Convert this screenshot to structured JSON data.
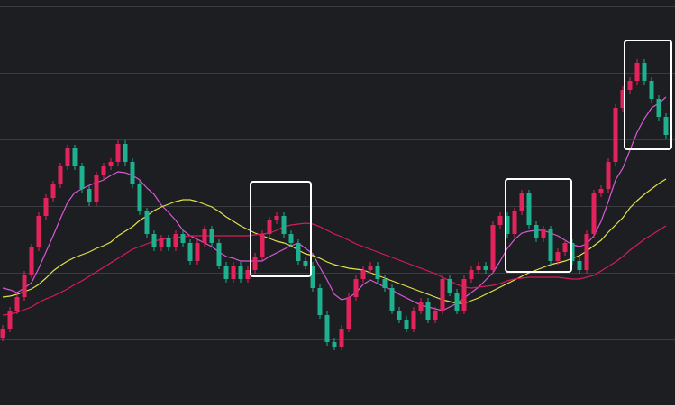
{
  "chart_data": {
    "type": "candlestick",
    "ylim": [
      1,
      451
    ],
    "yticks": [
      74,
      148,
      222,
      296,
      370,
      444
    ],
    "grid": true,
    "up_color": "#e3245c",
    "down_color": "#1fb08f",
    "open": [
      76,
      86,
      106,
      121,
      146,
      176,
      211,
      231,
      246,
      266,
      286,
      266,
      241,
      226,
      256,
      266,
      271,
      291,
      271,
      246,
      216,
      191,
      176,
      186,
      176,
      191,
      181,
      161,
      181,
      196,
      181,
      156,
      141,
      156,
      141,
      151,
      166,
      191,
      206,
      211,
      191,
      181,
      161,
      156,
      131,
      101,
      71,
      66,
      86,
      121,
      141,
      151,
      156,
      141,
      131,
      106,
      96,
      86,
      106,
      116,
      96,
      106,
      141,
      126,
      106,
      141,
      151,
      156,
      151,
      201,
      211,
      191,
      216,
      236,
      201,
      186,
      196,
      161,
      171,
      181,
      161,
      151,
      191,
      236,
      241,
      271,
      331,
      351,
      361,
      381,
      361,
      341,
      321
    ],
    "high": [
      90,
      110,
      125,
      150,
      180,
      215,
      235,
      250,
      270,
      290,
      290,
      270,
      245,
      260,
      270,
      275,
      295,
      295,
      275,
      250,
      220,
      195,
      190,
      190,
      195,
      195,
      185,
      185,
      200,
      200,
      185,
      160,
      160,
      160,
      155,
      170,
      195,
      210,
      215,
      215,
      195,
      185,
      165,
      160,
      135,
      105,
      75,
      90,
      125,
      145,
      155,
      160,
      160,
      145,
      135,
      110,
      100,
      110,
      120,
      120,
      110,
      145,
      145,
      130,
      145,
      155,
      160,
      160,
      205,
      215,
      215,
      220,
      240,
      240,
      205,
      200,
      200,
      175,
      185,
      185,
      165,
      195,
      240,
      245,
      275,
      335,
      355,
      365,
      385,
      385,
      365,
      345,
      325
    ],
    "low": [
      72,
      82,
      102,
      117,
      142,
      172,
      207,
      227,
      242,
      262,
      262,
      237,
      222,
      222,
      252,
      262,
      267,
      267,
      242,
      212,
      187,
      172,
      172,
      172,
      172,
      177,
      157,
      157,
      177,
      177,
      152,
      137,
      137,
      137,
      137,
      147,
      162,
      187,
      202,
      187,
      177,
      157,
      152,
      127,
      97,
      67,
      62,
      62,
      82,
      117,
      137,
      147,
      137,
      127,
      102,
      92,
      82,
      82,
      102,
      92,
      92,
      102,
      122,
      102,
      102,
      137,
      147,
      147,
      147,
      197,
      187,
      187,
      212,
      197,
      182,
      182,
      157,
      157,
      167,
      157,
      147,
      147,
      187,
      232,
      237,
      267,
      327,
      347,
      357,
      357,
      337,
      317,
      297
    ],
    "close": [
      86,
      106,
      121,
      146,
      176,
      211,
      231,
      246,
      266,
      286,
      266,
      241,
      226,
      256,
      266,
      271,
      291,
      271,
      246,
      216,
      191,
      176,
      186,
      176,
      191,
      181,
      161,
      181,
      196,
      181,
      156,
      141,
      156,
      141,
      151,
      166,
      191,
      206,
      211,
      191,
      181,
      161,
      156,
      131,
      101,
      71,
      66,
      86,
      121,
      141,
      151,
      156,
      141,
      131,
      106,
      96,
      86,
      106,
      116,
      96,
      106,
      141,
      126,
      106,
      141,
      151,
      156,
      151,
      201,
      211,
      191,
      216,
      236,
      201,
      186,
      196,
      161,
      171,
      181,
      161,
      151,
      191,
      236,
      241,
      271,
      331,
      351,
      361,
      381,
      361,
      341,
      321,
      301
    ],
    "series": [
      {
        "color": "#d957d9",
        "values": [
          131,
          129,
          126,
          131,
          137,
          153,
          171,
          189,
          208,
          226,
          237,
          241,
          245,
          248,
          251,
          256,
          260,
          259,
          256,
          251,
          242,
          235,
          223,
          215,
          206,
          195,
          189,
          185,
          181,
          177,
          171,
          166,
          164,
          161,
          161,
          161,
          161,
          166,
          170,
          174,
          178,
          181,
          175,
          169,
          154,
          140,
          124,
          118,
          120,
          126,
          135,
          140,
          136,
          132,
          129,
          124,
          120,
          116,
          112,
          110,
          108,
          106,
          110,
          114,
          120,
          126,
          132,
          140,
          148,
          161,
          175,
          185,
          192,
          194,
          195,
          195,
          192,
          189,
          184,
          179,
          177,
          180,
          189,
          205,
          227,
          251,
          264,
          284,
          304,
          319,
          331,
          336,
          343
        ]
      },
      {
        "color": "#e2e24a",
        "values": [
          121,
          122,
          124,
          127,
          130,
          135,
          142,
          150,
          156,
          161,
          165,
          168,
          171,
          175,
          178,
          182,
          189,
          194,
          199,
          206,
          211,
          217,
          221,
          224,
          227,
          229,
          229,
          227,
          224,
          221,
          216,
          210,
          205,
          200,
          196,
          192,
          189,
          186,
          183,
          181,
          178,
          173,
          169,
          167,
          164,
          160,
          157,
          155,
          153,
          152,
          151,
          148,
          145,
          142,
          139,
          136,
          133,
          130,
          127,
          124,
          121,
          118,
          116,
          114,
          114,
          117,
          120,
          124,
          128,
          132,
          136,
          140,
          144,
          148,
          151,
          154,
          157,
          159,
          161,
          164,
          167,
          172,
          178,
          184,
          193,
          201,
          209,
          220,
          228,
          235,
          241,
          247,
          252
        ]
      },
      {
        "color": "#d81b5a",
        "values": [
          101,
          102,
          104,
          107,
          110,
          115,
          119,
          122,
          126,
          130,
          135,
          139,
          144,
          149,
          154,
          159,
          164,
          169,
          174,
          177,
          180,
          183,
          185,
          186,
          187,
          188,
          189,
          189,
          189,
          189,
          189,
          189,
          189,
          189,
          189,
          190,
          191,
          192,
          195,
          199,
          201,
          202,
          203,
          202,
          199,
          195,
          191,
          188,
          184,
          180,
          177,
          174,
          171,
          168,
          165,
          162,
          159,
          156,
          153,
          150,
          147,
          143,
          139,
          135,
          132,
          131,
          132,
          133,
          134,
          136,
          139,
          141,
          142,
          143,
          143,
          143,
          143,
          143,
          142,
          141,
          141,
          143,
          145,
          150,
          155,
          160,
          166,
          173,
          179,
          185,
          190,
          195,
          200
        ]
      }
    ]
  }
}
